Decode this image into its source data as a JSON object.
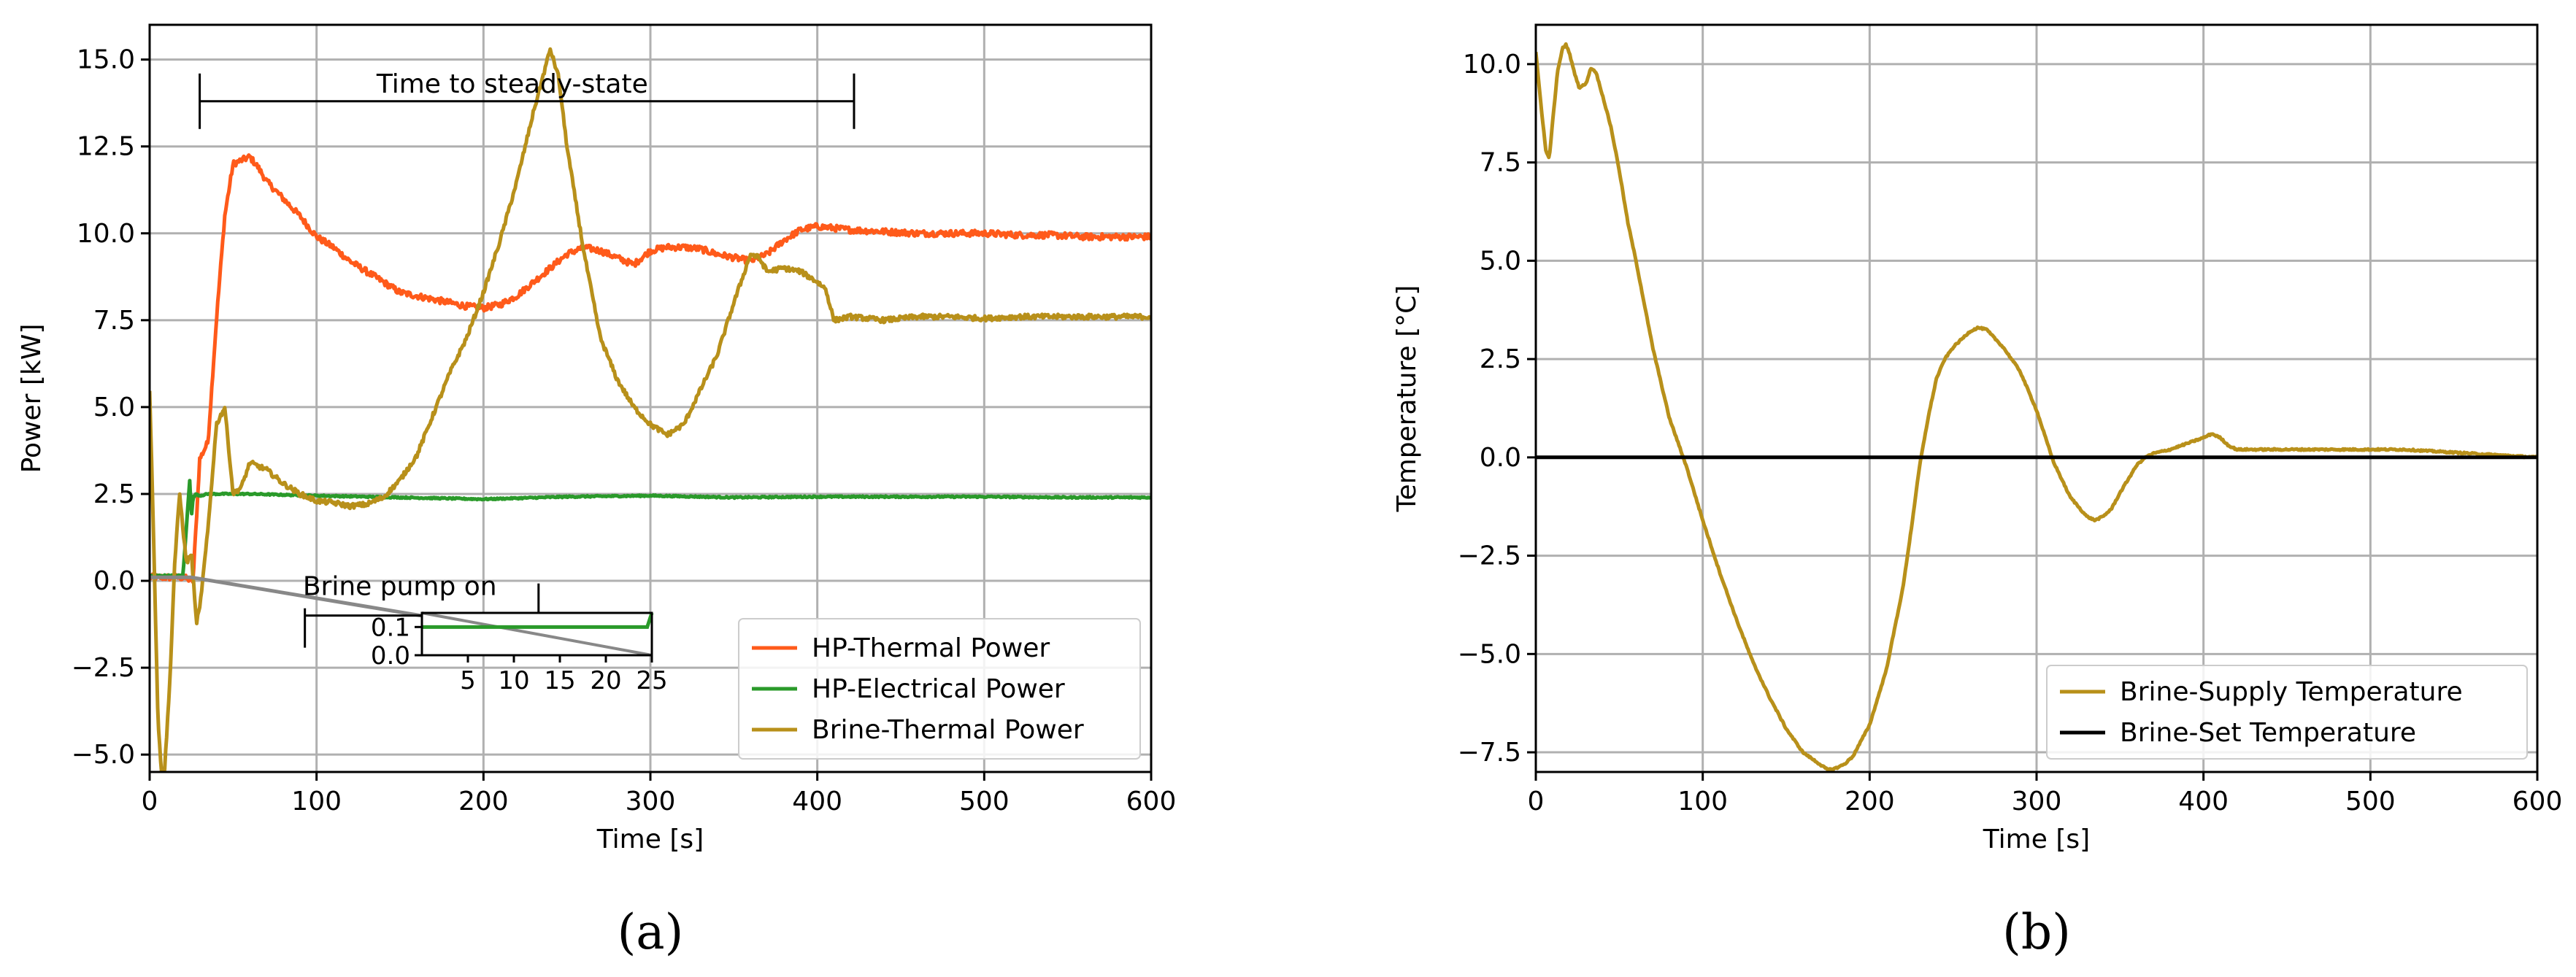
{
  "figure": {
    "panel_labels": [
      "(a)",
      "(b)"
    ]
  },
  "chart_data": [
    {
      "id": "a",
      "type": "line",
      "title": "",
      "xlabel": "Time [s]",
      "ylabel": "Power [kW]",
      "xlim": [
        0,
        600
      ],
      "ylim": [
        -5.5,
        16
      ],
      "xticks": [
        0,
        100,
        200,
        300,
        400,
        500,
        600
      ],
      "yticks": [
        -5.0,
        -2.5,
        0.0,
        2.5,
        5.0,
        7.5,
        10.0,
        12.5,
        15.0
      ],
      "ytick_labels": [
        "−5.0",
        "−2.5",
        "0.0",
        "2.5",
        "5.0",
        "7.5",
        "10.0",
        "12.5",
        "15.0"
      ],
      "grid": true,
      "legend_position": "lower-right",
      "series": [
        {
          "name": "HP-Thermal Power",
          "color": "#ff5a1a",
          "x": [
            0,
            20,
            26,
            30,
            35,
            40,
            45,
            50,
            55,
            60,
            65,
            70,
            80,
            90,
            100,
            110,
            120,
            130,
            140,
            150,
            160,
            170,
            180,
            190,
            200,
            210,
            220,
            230,
            240,
            250,
            260,
            270,
            280,
            290,
            300,
            310,
            320,
            330,
            340,
            350,
            360,
            370,
            380,
            390,
            400,
            410,
            420,
            440,
            460,
            480,
            500,
            520,
            540,
            560,
            580,
            600
          ],
          "y": [
            0.1,
            0.1,
            0.0,
            3.5,
            4.0,
            7.5,
            10.5,
            12.0,
            12.1,
            12.2,
            11.9,
            11.5,
            11.0,
            10.5,
            9.9,
            9.6,
            9.2,
            8.9,
            8.6,
            8.3,
            8.2,
            8.1,
            8.0,
            7.9,
            7.85,
            7.95,
            8.2,
            8.6,
            9.0,
            9.4,
            9.6,
            9.5,
            9.3,
            9.1,
            9.5,
            9.6,
            9.6,
            9.55,
            9.4,
            9.3,
            9.2,
            9.4,
            9.8,
            10.1,
            10.2,
            10.15,
            10.1,
            10.05,
            10.0,
            10.0,
            10.0,
            9.95,
            9.95,
            9.9,
            9.9,
            9.9
          ],
          "noise": 0.09
        },
        {
          "name": "HP-Electrical Power",
          "color": "#2a9a2a",
          "x": [
            0,
            20,
            24,
            25,
            26,
            28,
            30,
            35,
            40,
            60,
            100,
            150,
            200,
            250,
            300,
            350,
            400,
            450,
            500,
            550,
            600
          ],
          "y": [
            0.15,
            0.15,
            2.9,
            1.8,
            2.4,
            2.5,
            2.45,
            2.5,
            2.5,
            2.5,
            2.45,
            2.4,
            2.35,
            2.42,
            2.45,
            2.4,
            2.42,
            2.42,
            2.42,
            2.4,
            2.4
          ],
          "noise": 0.02
        },
        {
          "name": "Brine-Thermal Power",
          "color": "#b8901a",
          "x": [
            0,
            2,
            5,
            7,
            9,
            12,
            15,
            18,
            20,
            22,
            25,
            28,
            30,
            35,
            40,
            45,
            50,
            55,
            60,
            70,
            80,
            90,
            100,
            110,
            120,
            130,
            140,
            150,
            160,
            170,
            180,
            190,
            200,
            210,
            220,
            230,
            240,
            245,
            250,
            260,
            270,
            280,
            290,
            300,
            310,
            320,
            330,
            340,
            350,
            360,
            365,
            370,
            380,
            390,
            400,
            405,
            410,
            420,
            430,
            440,
            460,
            480,
            500,
            520,
            540,
            560,
            580,
            600
          ],
          "y": [
            5.5,
            2.0,
            -4.0,
            -5.5,
            -5.4,
            -3.0,
            0.5,
            2.5,
            1.5,
            0.5,
            0.8,
            -1.2,
            -0.8,
            1.5,
            4.5,
            5.0,
            2.5,
            2.7,
            3.4,
            3.2,
            2.8,
            2.5,
            2.3,
            2.25,
            2.15,
            2.2,
            2.4,
            2.9,
            3.6,
            4.8,
            6.0,
            7.0,
            8.3,
            9.8,
            11.5,
            13.5,
            15.3,
            14.5,
            12.5,
            9.5,
            7.0,
            5.8,
            5.0,
            4.5,
            4.2,
            4.5,
            5.5,
            6.5,
            8.0,
            9.4,
            9.3,
            8.9,
            9.0,
            8.9,
            8.6,
            8.4,
            7.5,
            7.6,
            7.55,
            7.5,
            7.6,
            7.6,
            7.55,
            7.6,
            7.6,
            7.6,
            7.6,
            7.6
          ],
          "noise": 0.07
        },
        {
          "name": "",
          "color": "#888888",
          "x": [
            0,
            25,
            300
          ],
          "y": [
            0.1,
            0.1,
            -2.1
          ],
          "noise": 0
        }
      ],
      "annotations": {
        "steady_state_label": "Time to steady-state",
        "steady_state_range": [
          30,
          422
        ],
        "steady_state_y": 13.8,
        "brine_pump_label": "Brine pump on",
        "brine_pump_range": [
          93,
          233
        ],
        "brine_pump_y": -1.0
      },
      "inset": {
        "xlim": [
          0,
          25
        ],
        "ylim": [
          0.0,
          0.15
        ],
        "xticks": [
          5,
          10,
          15,
          20,
          25
        ],
        "yticks": [
          0.0,
          0.1
        ],
        "ytick_labels": [
          "0.0",
          "0.1"
        ],
        "series": {
          "color": "#2a9a2a",
          "x": [
            0,
            24,
            24.5,
            25
          ],
          "y": [
            0.1,
            0.1,
            0.1,
            0.15
          ]
        },
        "gray_line": {
          "color": "#888888",
          "x": [
            0,
            25
          ],
          "y": [
            0.15,
            0.0
          ]
        }
      }
    },
    {
      "id": "b",
      "type": "line",
      "title": "",
      "xlabel": "Time [s]",
      "ylabel": "Temperature [°C]",
      "xlim": [
        0,
        600
      ],
      "ylim": [
        -8,
        11
      ],
      "xticks": [
        0,
        100,
        200,
        300,
        400,
        500,
        600
      ],
      "yticks": [
        -7.5,
        -5.0,
        -2.5,
        0.0,
        2.5,
        5.0,
        7.5,
        10.0
      ],
      "ytick_labels": [
        "−7.5",
        "−5.0",
        "−2.5",
        "0.0",
        "2.5",
        "5.0",
        "7.5",
        "10.0"
      ],
      "grid": true,
      "legend_position": "lower-right",
      "series": [
        {
          "name": "Brine-Supply Temperature",
          "color": "#b8901a",
          "x": [
            0,
            3,
            6,
            8,
            10,
            13,
            16,
            18,
            20,
            23,
            26,
            30,
            33,
            36,
            40,
            45,
            50,
            55,
            60,
            65,
            70,
            75,
            80,
            85,
            90,
            100,
            110,
            120,
            130,
            140,
            150,
            160,
            170,
            175,
            180,
            185,
            190,
            200,
            210,
            220,
            225,
            230,
            235,
            240,
            245,
            250,
            260,
            265,
            270,
            280,
            290,
            300,
            310,
            320,
            330,
            335,
            340,
            345,
            350,
            360,
            365,
            370,
            380,
            390,
            400,
            405,
            410,
            415,
            420,
            440,
            460,
            480,
            500,
            520,
            540,
            560,
            580,
            600
          ],
          "y": [
            10.3,
            9.0,
            7.8,
            7.6,
            8.5,
            9.8,
            10.4,
            10.5,
            10.3,
            9.8,
            9.4,
            9.5,
            9.9,
            9.8,
            9.2,
            8.4,
            7.3,
            6.0,
            5.0,
            3.9,
            2.8,
            1.9,
            1.0,
            0.4,
            -0.2,
            -1.6,
            -2.9,
            -4.1,
            -5.2,
            -6.1,
            -6.9,
            -7.5,
            -7.8,
            -7.95,
            -7.9,
            -7.8,
            -7.6,
            -6.8,
            -5.4,
            -3.3,
            -1.8,
            -0.2,
            1.0,
            2.0,
            2.5,
            2.8,
            3.2,
            3.3,
            3.25,
            2.8,
            2.2,
            1.2,
            -0.1,
            -1.0,
            -1.5,
            -1.6,
            -1.5,
            -1.3,
            -0.9,
            -0.2,
            0.0,
            0.1,
            0.2,
            0.35,
            0.5,
            0.6,
            0.5,
            0.3,
            0.2,
            0.2,
            0.2,
            0.2,
            0.2,
            0.2,
            0.15,
            0.1,
            0.05,
            0.0
          ],
          "noise": 0.02
        },
        {
          "name": "Brine-Set Temperature",
          "color": "#000000",
          "x": [
            0,
            600
          ],
          "y": [
            0,
            0
          ],
          "noise": 0
        }
      ]
    }
  ]
}
